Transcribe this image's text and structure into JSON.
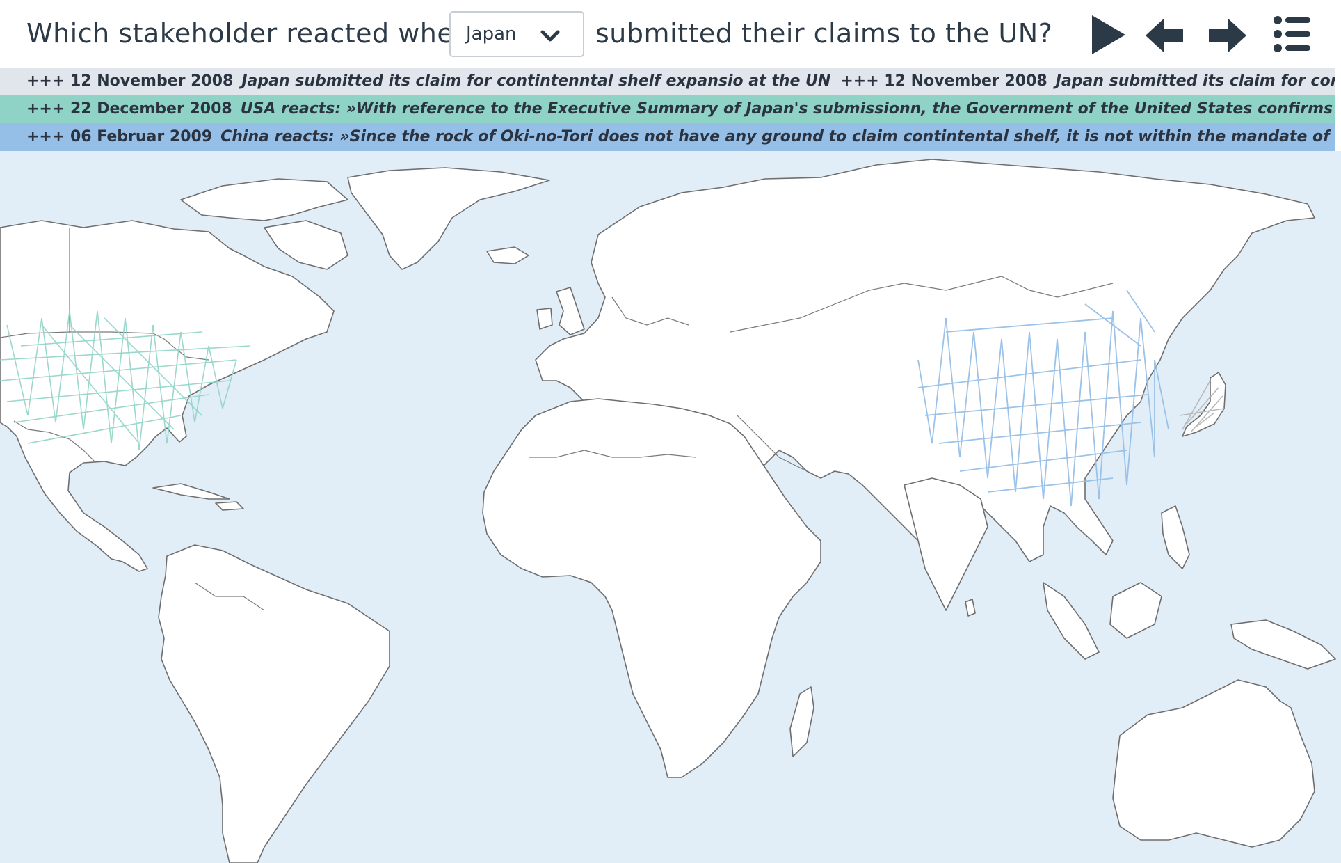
{
  "question": {
    "prefix": "Which stakeholder reacted when",
    "suffix": "submitted their claims to the UN?",
    "selected_country": "Japan"
  },
  "controls": {
    "play_icon": "play-icon",
    "prev_icon": "arrow-left-icon",
    "next_icon": "arrow-right-icon",
    "list_icon": "list-icon"
  },
  "ticker": [
    {
      "date": "+++ 12 November 2008",
      "text": "Japan submitted its claim for contintenntal shelf expansio at the UN",
      "date_repeat": "+++ 12 November 2008",
      "text_repeat": "Japan submitted its claim for contintenntal shelf expansio at the UN",
      "color": "#e0e6ec"
    },
    {
      "date": "+++ 22 December 2008",
      "text": "USA reacts:  »With reference to the Executive Summary of Japan's submissionn, the Government of the United States confirms that it does not object",
      "color": "#8fd3c6"
    },
    {
      "date": "+++ 06 Februar  2009",
      "text": "China reacts: »Since the rock of Oki-no-Tori does not have any ground to claim contintental shelf, it is not within the mandate of the Commission to make",
      "color": "#96bfe7"
    }
  ],
  "map": {
    "ocean_color": "#e1eef7",
    "land_color": "#ffffff",
    "highlighted": [
      {
        "country": "USA",
        "color": "#8fd3c6"
      },
      {
        "country": "China",
        "color": "#96bfe7"
      },
      {
        "country": "Japan",
        "color": "#b8b8b8"
      }
    ]
  }
}
